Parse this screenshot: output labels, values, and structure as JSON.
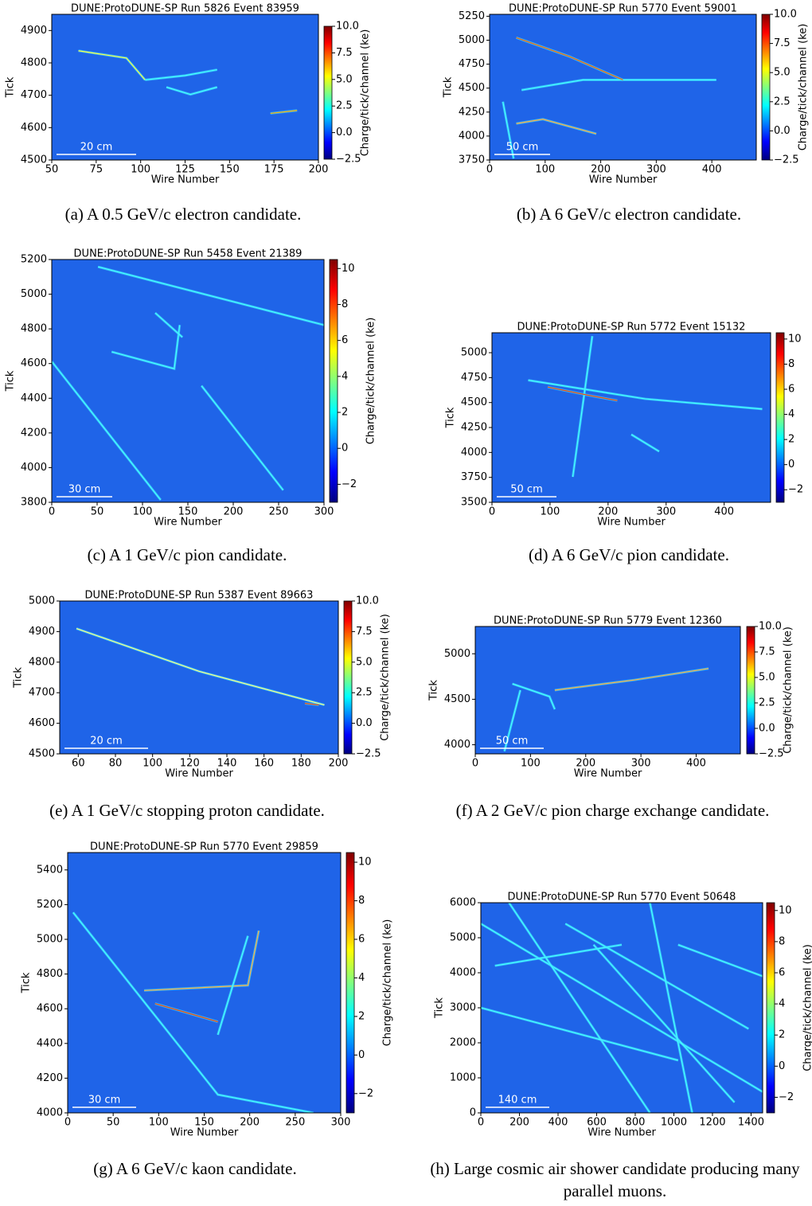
{
  "chart_data": [
    {
      "type": "event-display",
      "title": "DUNE:ProtoDUNE-SP Run 5826 Event 83959",
      "xlabel": "Wire Number",
      "ylabel": "Tick",
      "xlim": [
        50,
        200
      ],
      "xticks": [
        50,
        75,
        100,
        125,
        150,
        175,
        200
      ],
      "ylim": [
        4500,
        4950
      ],
      "yticks": [
        4500,
        4600,
        4700,
        4800,
        4900
      ],
      "colorbar": {
        "label": "Charge/tick/channel (ke)",
        "lim": [
          -2.5,
          10
        ],
        "ticks": [
          {
            "value": 10,
            "label": "10.0"
          },
          {
            "value": 7.5,
            "label": "7.5"
          },
          {
            "value": 5,
            "label": "5.0"
          },
          {
            "value": 2.5,
            "label": "2.5"
          },
          {
            "value": 0,
            "label": "0.0"
          },
          {
            "value": -2.5,
            "label": "−2.5"
          }
        ]
      },
      "scale_bar": "20 cm",
      "caption": "(a) A 0.5 GeV/c electron candidate."
    },
    {
      "type": "event-display",
      "title": "DUNE:ProtoDUNE-SP Run 5770 Event 59001",
      "xlabel": "Wire Number",
      "ylabel": "Tick",
      "xlim": [
        0,
        480
      ],
      "xticks": [
        0,
        100,
        200,
        300,
        400
      ],
      "ylim": [
        3750,
        5270
      ],
      "yticks": [
        3750,
        4000,
        4250,
        4500,
        4750,
        5000,
        5250
      ],
      "colorbar": {
        "label": "Charge/tick/channel (ke)",
        "lim": [
          -2.5,
          10
        ],
        "ticks": [
          {
            "value": 10,
            "label": "10.0"
          },
          {
            "value": 7.5,
            "label": "7.5"
          },
          {
            "value": 5,
            "label": "5.0"
          },
          {
            "value": 2.5,
            "label": "2.5"
          },
          {
            "value": 0,
            "label": "0.0"
          },
          {
            "value": -2.5,
            "label": "−2.5"
          }
        ]
      },
      "scale_bar": "50 cm",
      "caption": "(b) A 6 GeV/c electron candidate."
    },
    {
      "type": "event-display",
      "title": "DUNE:ProtoDUNE-SP Run 5458 Event 21389",
      "xlabel": "Wire Number",
      "ylabel": "Tick",
      "xlim": [
        0,
        300
      ],
      "xticks": [
        0,
        50,
        100,
        150,
        200,
        250,
        300
      ],
      "ylim": [
        3800,
        5200
      ],
      "yticks": [
        3800,
        4000,
        4200,
        4400,
        4600,
        4800,
        5000,
        5200
      ],
      "colorbar": {
        "label": "Charge/tick/channel (ke)",
        "lim": [
          -3,
          10.5
        ],
        "ticks": [
          10,
          8,
          6,
          4,
          2,
          0,
          {
            "value": -2,
            "label": "−2"
          }
        ]
      },
      "scale_bar": "30 cm",
      "caption": "(c) A 1 GeV/c pion candidate."
    },
    {
      "type": "event-display",
      "title": "DUNE:ProtoDUNE-SP Run 5772 Event 15132",
      "xlabel": "Wire Number",
      "ylabel": "Tick",
      "xlim": [
        0,
        480
      ],
      "xticks": [
        0,
        100,
        200,
        300,
        400
      ],
      "ylim": [
        3500,
        5200
      ],
      "yticks": [
        3500,
        3750,
        4000,
        4250,
        4500,
        4750,
        5000
      ],
      "colorbar": {
        "label": "Charge/tick/channel (ke)",
        "lim": [
          -3,
          10.5
        ],
        "ticks": [
          10,
          8,
          6,
          4,
          2,
          0,
          {
            "value": -2,
            "label": "−2"
          }
        ]
      },
      "scale_bar": "50 cm",
      "caption": "(d) A 6 GeV/c pion candidate."
    },
    {
      "type": "event-display",
      "title": "DUNE:ProtoDUNE-SP Run 5387 Event 89663",
      "xlabel": "Wire Number",
      "ylabel": "Tick",
      "xlim": [
        50,
        200
      ],
      "xticks": [
        60,
        80,
        100,
        120,
        140,
        160,
        180,
        200
      ],
      "ylim": [
        4500,
        5000
      ],
      "yticks": [
        4500,
        4600,
        4700,
        4800,
        4900,
        5000
      ],
      "colorbar": {
        "label": "Charge/tick/channel (ke)",
        "lim": [
          -2.5,
          10
        ],
        "ticks": [
          {
            "value": 10,
            "label": "10.0"
          },
          {
            "value": 7.5,
            "label": "7.5"
          },
          {
            "value": 5,
            "label": "5.0"
          },
          {
            "value": 2.5,
            "label": "2.5"
          },
          {
            "value": 0,
            "label": "0.0"
          },
          {
            "value": -2.5,
            "label": "−2.5"
          }
        ]
      },
      "scale_bar": "20 cm",
      "caption": "(e) A 1 GeV/c stopping proton candidate."
    },
    {
      "type": "event-display",
      "title": "DUNE:ProtoDUNE-SP Run 5779 Event 12360",
      "xlabel": "Wire Number",
      "ylabel": "Tick",
      "xlim": [
        0,
        480
      ],
      "xticks": [
        0,
        100,
        200,
        300,
        400
      ],
      "ylim": [
        3900,
        5300
      ],
      "yticks": [
        4000,
        4500,
        5000
      ],
      "colorbar": {
        "label": "Charge/tick/channel (ke)",
        "lim": [
          -2.5,
          10
        ],
        "ticks": [
          {
            "value": 10,
            "label": "10.0"
          },
          {
            "value": 7.5,
            "label": "7.5"
          },
          {
            "value": 5,
            "label": "5.0"
          },
          {
            "value": 2.5,
            "label": "2.5"
          },
          {
            "value": 0,
            "label": "0.0"
          },
          {
            "value": -2.5,
            "label": "−2.5"
          }
        ]
      },
      "scale_bar": "50 cm",
      "caption": "(f) A 2 GeV/c pion charge exchange candidate."
    },
    {
      "type": "event-display",
      "title": "DUNE:ProtoDUNE-SP Run 5770 Event 29859",
      "xlabel": "Wire Number",
      "ylabel": "Tick",
      "xlim": [
        0,
        300
      ],
      "xticks": [
        0,
        50,
        100,
        150,
        200,
        250,
        300
      ],
      "ylim": [
        4000,
        5500
      ],
      "yticks": [
        4000,
        4200,
        4400,
        4600,
        4800,
        5000,
        5200,
        5400
      ],
      "colorbar": {
        "label": "Charge/tick/channel (ke)",
        "lim": [
          -3,
          10.5
        ],
        "ticks": [
          10,
          8,
          6,
          4,
          2,
          0,
          {
            "value": -2,
            "label": "−2"
          }
        ]
      },
      "scale_bar": "30 cm",
      "caption": "(g) A 6 GeV/c kaon candidate."
    },
    {
      "type": "event-display",
      "title": "DUNE:ProtoDUNE-SP Run 5770 Event 50648",
      "xlabel": "Wire Number",
      "ylabel": "Tick",
      "xlim": [
        0,
        1460
      ],
      "xticks": [
        0,
        200,
        400,
        600,
        800,
        1000,
        1200,
        1400
      ],
      "ylim": [
        0,
        6000
      ],
      "yticks": [
        0,
        1000,
        2000,
        3000,
        4000,
        5000,
        6000
      ],
      "colorbar": {
        "label": "Charge/tick/channel (ke)",
        "lim": [
          -3,
          10.5
        ],
        "ticks": [
          10,
          8,
          6,
          4,
          2,
          0,
          {
            "value": -2,
            "label": "−2"
          }
        ]
      },
      "scale_bar": "140 cm",
      "caption": "(h) Large cosmic air shower candidate producing many parallel muons."
    }
  ]
}
